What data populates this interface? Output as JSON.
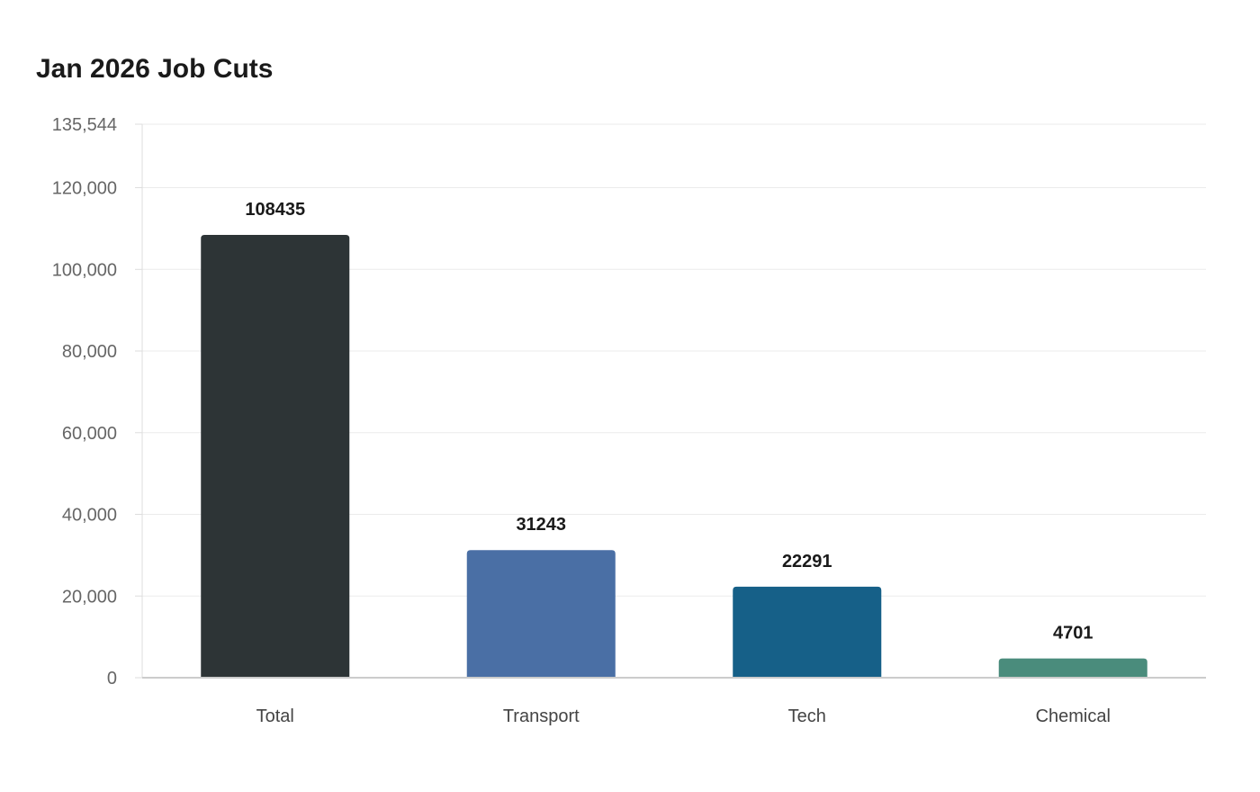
{
  "chart_data": {
    "type": "bar",
    "title": "Jan 2026 Job Cuts",
    "xlabel": "",
    "ylabel": "",
    "categories": [
      "Total",
      "Transport",
      "Tech",
      "Chemical"
    ],
    "values": [
      108435,
      31243,
      22291,
      4701
    ],
    "data_labels": [
      "108435",
      "31243",
      "22291",
      "4701"
    ],
    "colors": [
      "#2d3436",
      "#4a6fa5",
      "#166088",
      "#4a8c7c"
    ],
    "ylim": [
      0,
      135544
    ],
    "yticks": [
      0,
      20000,
      40000,
      60000,
      80000,
      100000,
      120000,
      135544
    ],
    "ytick_labels": [
      "0",
      "20,000",
      "40,000",
      "60,000",
      "80,000",
      "100,000",
      "120,000",
      "135,544"
    ],
    "grid": true,
    "legend": "none"
  }
}
